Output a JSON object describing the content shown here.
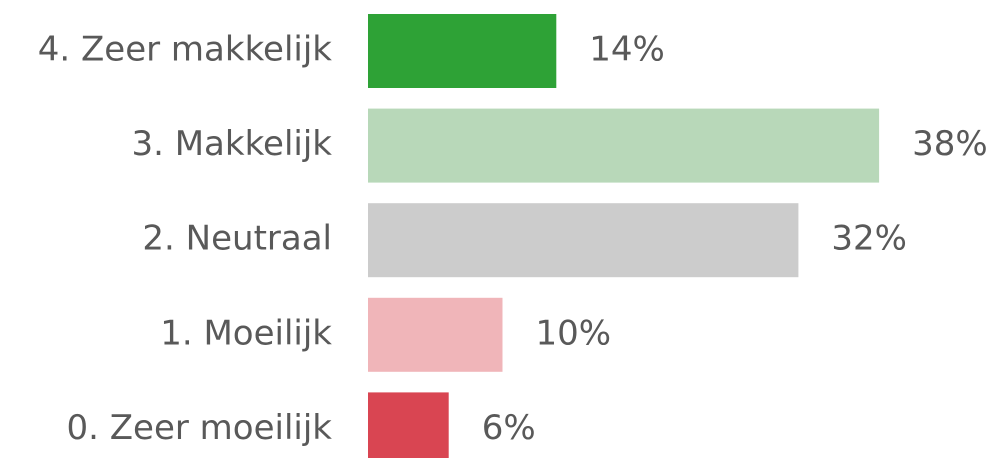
{
  "chart_data": {
    "type": "bar",
    "orientation": "horizontal",
    "categories": [
      "4. Zeer makkelijk",
      "3. Makkelijk",
      "2. Neutraal",
      "1. Moeilijk",
      "0. Zeer moeilijk"
    ],
    "values": [
      14,
      38,
      32,
      10,
      6
    ],
    "value_labels": [
      "14%",
      "38%",
      "32%",
      "10%",
      "6%"
    ],
    "colors": [
      "#2ea236",
      "#b8d8b9",
      "#cccccc",
      "#f0b5b9",
      "#d94552"
    ]
  }
}
